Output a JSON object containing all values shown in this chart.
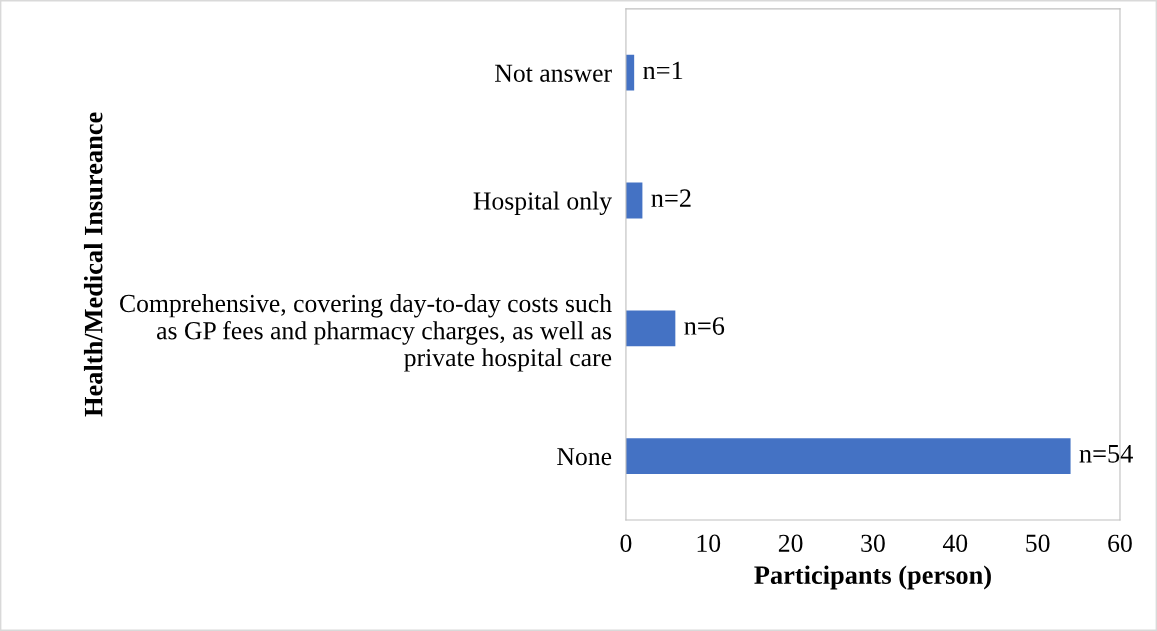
{
  "chart_data": {
    "type": "bar",
    "orientation": "horizontal",
    "categories": [
      "Not answer",
      "Hospital only",
      "Comprehensive, covering day-to-day costs such\nas GP fees and pharmacy charges, as well as\nprivate hospital care",
      "None"
    ],
    "values": [
      1,
      2,
      6,
      54
    ],
    "color": "#4472c4",
    "value_labels": [
      "n=1",
      "n=2",
      "n=6",
      "n=54"
    ],
    "xlabel": "Participants (person)",
    "ylabel": "Health/Medical Insureance",
    "xlim": [
      0,
      60
    ],
    "xticks": [
      0,
      10,
      20,
      30,
      40,
      50,
      60
    ],
    "grid": false,
    "legend": false
  }
}
